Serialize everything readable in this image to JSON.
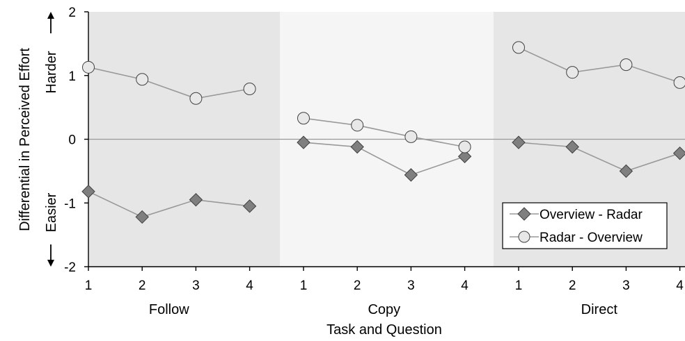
{
  "chart_data": {
    "type": "line",
    "ylabel": "Differential in Perceived Effort",
    "xlabel": "Task and Question",
    "y_annotations": {
      "up": "Harder",
      "down": "Easier"
    },
    "ylim": [
      -2,
      2
    ],
    "yticks": [
      "2",
      "1",
      "0",
      "-1",
      "-2"
    ],
    "groups": [
      {
        "name": "Follow",
        "background": "#e6e6e6",
        "questions": [
          "1",
          "2",
          "3",
          "4"
        ]
      },
      {
        "name": "Copy",
        "background": "#f5f5f5",
        "questions": [
          "1",
          "2",
          "3",
          "4"
        ]
      },
      {
        "name": "Direct",
        "background": "#e6e6e6",
        "questions": [
          "1",
          "2",
          "3",
          "4"
        ]
      }
    ],
    "series": [
      {
        "name": "Overview - Radar",
        "marker": "diamond",
        "color": "#7f7f7f",
        "values": [
          [
            -0.82,
            -1.22,
            -0.95,
            -1.05
          ],
          [
            -0.05,
            -0.12,
            -0.56,
            -0.27
          ],
          [
            -0.05,
            -0.12,
            -0.5,
            -0.22
          ]
        ]
      },
      {
        "name": "Radar - Overview",
        "marker": "circle",
        "color": "#e8e8e8",
        "values": [
          [
            1.13,
            0.94,
            0.64,
            0.79
          ],
          [
            0.33,
            0.22,
            0.04,
            -0.12
          ],
          [
            1.44,
            1.05,
            1.17,
            0.89
          ]
        ]
      }
    ],
    "legend_position": "bottom-right",
    "grid": false
  }
}
